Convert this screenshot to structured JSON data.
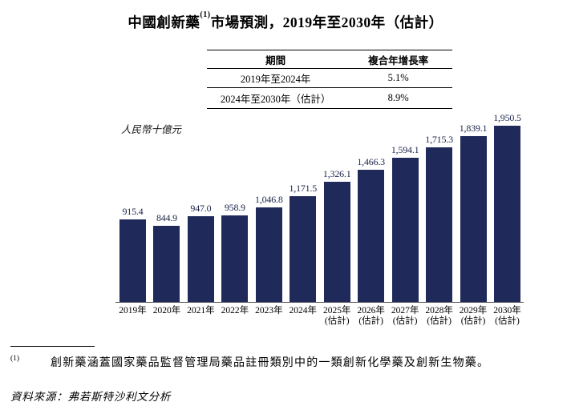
{
  "page": {
    "title": {
      "prefix": "中國創新藥",
      "footnote_ref": "(1)",
      "suffix": "市場預測，2019年至2030年（估計）"
    }
  },
  "cagr_table": {
    "headers": {
      "period": "期間",
      "cagr": "複合年增長率"
    },
    "rows": [
      {
        "period": "2019年至2024年",
        "cagr": "5.1%"
      },
      {
        "period": "2024年至2030年（估計）",
        "cagr": "8.9%"
      }
    ]
  },
  "chart_data": {
    "type": "bar",
    "title": "中國創新藥(1)市場預測，2019年至2030年（估計）",
    "unit_label": "人民幣十億元",
    "categories": [
      {
        "year": "2019年",
        "note": ""
      },
      {
        "year": "2020年",
        "note": ""
      },
      {
        "year": "2021年",
        "note": ""
      },
      {
        "year": "2022年",
        "note": ""
      },
      {
        "year": "2023年",
        "note": ""
      },
      {
        "year": "2024年",
        "note": ""
      },
      {
        "year": "2025年",
        "note": "(估計)"
      },
      {
        "year": "2026年",
        "note": "(估計)"
      },
      {
        "year": "2027年",
        "note": "(估計)"
      },
      {
        "year": "2028年",
        "note": "(估計)"
      },
      {
        "year": "2029年",
        "note": "(估計)"
      },
      {
        "year": "2030年",
        "note": "(估計)"
      }
    ],
    "values": [
      915.4,
      844.9,
      947.0,
      958.9,
      1046.8,
      1171.5,
      1326.1,
      1466.3,
      1594.1,
      1715.3,
      1839.1,
      1950.5
    ],
    "value_labels": [
      "915.4",
      "844.9",
      "947.0",
      "958.9",
      "1,046.8",
      "1,171.5",
      "1,326.1",
      "1,466.3",
      "1,594.1",
      "1,715.3",
      "1,839.1",
      "1,950.5"
    ],
    "bar_color": "#1f2a5a",
    "xlabel": "",
    "ylabel": "人民幣十億元",
    "ylim": [
      0,
      2000
    ],
    "grid": false,
    "legend": false
  },
  "footnote": {
    "marker": "(1)",
    "text": "創新藥涵蓋國家藥品監督管理局藥品註冊類別中的一類創新化學藥及創新生物藥。"
  },
  "source": "資料來源：弗若斯特沙利文分析"
}
